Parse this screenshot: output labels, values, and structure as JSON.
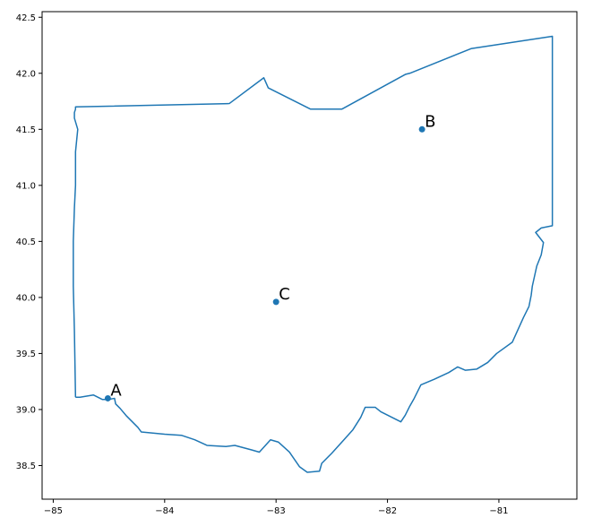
{
  "chart_data": {
    "type": "scatter",
    "title": "",
    "xlabel": "",
    "ylabel": "",
    "xlim": [
      -85.1,
      -80.3
    ],
    "ylim": [
      38.2,
      42.55
    ],
    "x_ticks": [
      -85,
      -84,
      -83,
      -82,
      -81
    ],
    "x_tick_labels": [
      "−85",
      "−84",
      "−83",
      "−82",
      "−81"
    ],
    "y_ticks": [
      38.5,
      39.0,
      39.5,
      40.0,
      40.5,
      41.0,
      41.5,
      42.0,
      42.5
    ],
    "y_tick_labels": [
      "38.5",
      "39.0",
      "39.5",
      "40.0",
      "40.5",
      "41.0",
      "41.5",
      "42.0",
      "42.5"
    ],
    "grid": false,
    "color": "#1f77b4",
    "points": [
      {
        "label": "A",
        "x": -84.51,
        "y": 39.1
      },
      {
        "label": "B",
        "x": -81.69,
        "y": 41.5
      },
      {
        "label": "C",
        "x": -83.0,
        "y": 39.96
      }
    ],
    "outline": {
      "name": "",
      "x": [
        -84.8,
        -84.81,
        -84.82,
        -84.82,
        -84.82,
        -84.81,
        -84.8,
        -84.8,
        -84.78,
        -84.81,
        -84.81,
        -84.8,
        -84.8,
        -83.42,
        -83.11,
        -83.07,
        -82.69,
        -82.41,
        -81.84,
        -81.8,
        -81.25,
        -80.52,
        -80.52,
        -80.62,
        -80.67,
        -80.6,
        -80.62,
        -80.66,
        -80.7,
        -80.71,
        -80.73,
        -80.78,
        -80.83,
        -80.88,
        -81.02,
        -81.1,
        -81.2,
        -81.3,
        -81.37,
        -81.45,
        -81.58,
        -81.7,
        -81.76,
        -81.8,
        -81.84,
        -81.88,
        -82.06,
        -82.11,
        -82.2,
        -82.24,
        -82.31,
        -82.4,
        -82.5,
        -82.59,
        -82.61,
        -82.72,
        -82.79,
        -82.88,
        -82.98,
        -83.05,
        -83.15,
        -83.22,
        -83.37,
        -83.45,
        -83.62,
        -83.73,
        -83.85,
        -84.0,
        -84.21,
        -84.24,
        -84.34,
        -84.4,
        -84.44,
        -84.45,
        -84.5,
        -84.56,
        -84.64,
        -84.76,
        -84.8
      ],
      "y": [
        39.11,
        39.7,
        40.1,
        40.3,
        40.5,
        40.8,
        41.0,
        41.3,
        41.5,
        41.6,
        41.65,
        41.68,
        41.7,
        41.73,
        41.96,
        41.87,
        41.68,
        41.68,
        41.99,
        42.0,
        42.22,
        42.33,
        40.64,
        40.62,
        40.58,
        40.49,
        40.38,
        40.28,
        40.1,
        40.02,
        39.92,
        39.82,
        39.71,
        39.6,
        39.5,
        39.42,
        39.36,
        39.35,
        39.38,
        39.33,
        39.27,
        39.22,
        39.1,
        39.03,
        38.95,
        38.89,
        38.98,
        39.02,
        39.02,
        38.93,
        38.82,
        38.72,
        38.61,
        38.52,
        38.45,
        38.44,
        38.49,
        38.62,
        38.71,
        38.73,
        38.62,
        38.64,
        38.68,
        38.67,
        38.68,
        38.73,
        38.77,
        38.78,
        38.8,
        38.84,
        38.94,
        39.01,
        39.05,
        39.1,
        39.09,
        39.09,
        39.13,
        39.11,
        39.11
      ]
    }
  }
}
